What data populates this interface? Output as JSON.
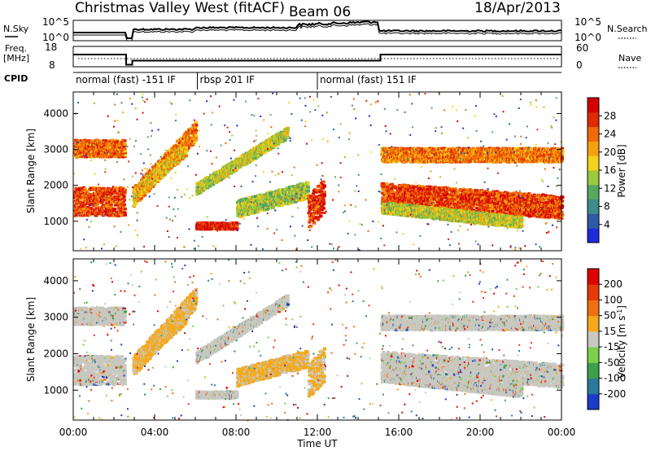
{
  "header": {
    "title": "Christmas Valley West (fitACF)",
    "beam": "Beam 06",
    "date": "18/Apr/2013"
  },
  "sidebar_labels": {
    "nsky": "N.Sky",
    "freq_line1": "Freq.",
    "freq_line2": "[MHz]",
    "cpid": "CPID",
    "nsearch": "N.Search",
    "nave": "Nave"
  },
  "chart_data": [
    {
      "type": "line",
      "panel": "noise",
      "left_axis_ticks": [
        "10^5",
        "10^0"
      ],
      "right_axis_ticks": [
        "10^5",
        "10^0"
      ],
      "legend": [
        "N.Sky",
        "N.Search"
      ]
    },
    {
      "type": "line",
      "panel": "frequency",
      "left_axis_ticks": [
        "18",
        "8"
      ],
      "right_axis_ticks": [
        "60",
        "0"
      ],
      "legend": [
        "Freq. [MHz]",
        "Nave"
      ],
      "series": [
        {
          "name": "Freq. [MHz]",
          "x": [
            0,
            2.6,
            2.6,
            2.9,
            2.9,
            15.1,
            15.1,
            24
          ],
          "values": [
            14,
            14,
            9,
            9,
            11,
            11,
            14,
            14
          ]
        }
      ]
    },
    {
      "type": "table",
      "panel": "cpid",
      "segments": [
        {
          "start_hour": 0,
          "end_hour": 6.1,
          "label": "normal (fast) -151 IF"
        },
        {
          "start_hour": 6.1,
          "end_hour": 12.0,
          "label": "rbsp 201 IF"
        },
        {
          "start_hour": 12.0,
          "end_hour": 24,
          "label": "normal (fast) 151 IF"
        }
      ]
    },
    {
      "type": "heatmap",
      "panel": "power",
      "ylabel": "Slant Range [km]",
      "ylim": [
        180,
        4600
      ],
      "yticks": [
        1000,
        2000,
        3000,
        4000
      ],
      "xlim": [
        0,
        24
      ],
      "colorbar": {
        "label": "Power [dB]",
        "range": [
          0,
          30
        ],
        "ticks": [
          "28",
          "24",
          "20",
          "16",
          "12",
          "8",
          "4"
        ],
        "colors": [
          "#1f2adb",
          "#2f5aa8",
          "#3f8a8a",
          "#56a860",
          "#9bcb3a",
          "#f2d31c",
          "#f5a10c",
          "#f06a08",
          "#e02a04",
          "#d40000"
        ]
      }
    },
    {
      "type": "heatmap",
      "panel": "velocity",
      "ylabel": "Velocity [m s^-1]",
      "yaxis_label": "Slant Range [km]",
      "ylim": [
        180,
        4600
      ],
      "yticks": [
        1000,
        2000,
        3000,
        4000
      ],
      "xlim": [
        0,
        24
      ],
      "xlabel": "Time UT",
      "xticks": [
        "00:00",
        "04:00",
        "08:00",
        "12:00",
        "16:00",
        "20:00",
        "00:00"
      ],
      "colorbar": {
        "label": "Velocity [m s^-1]",
        "ticks": [
          "200",
          "100",
          "50",
          "15",
          "-15",
          "-50",
          "-100",
          "-200"
        ],
        "colors": [
          "#1b3cc8",
          "#2a7a9a",
          "#3ea04a",
          "#7cd04a",
          "#c8c8c0",
          "#f5a818",
          "#f07010",
          "#e83a08",
          "#e00000"
        ]
      }
    }
  ]
}
